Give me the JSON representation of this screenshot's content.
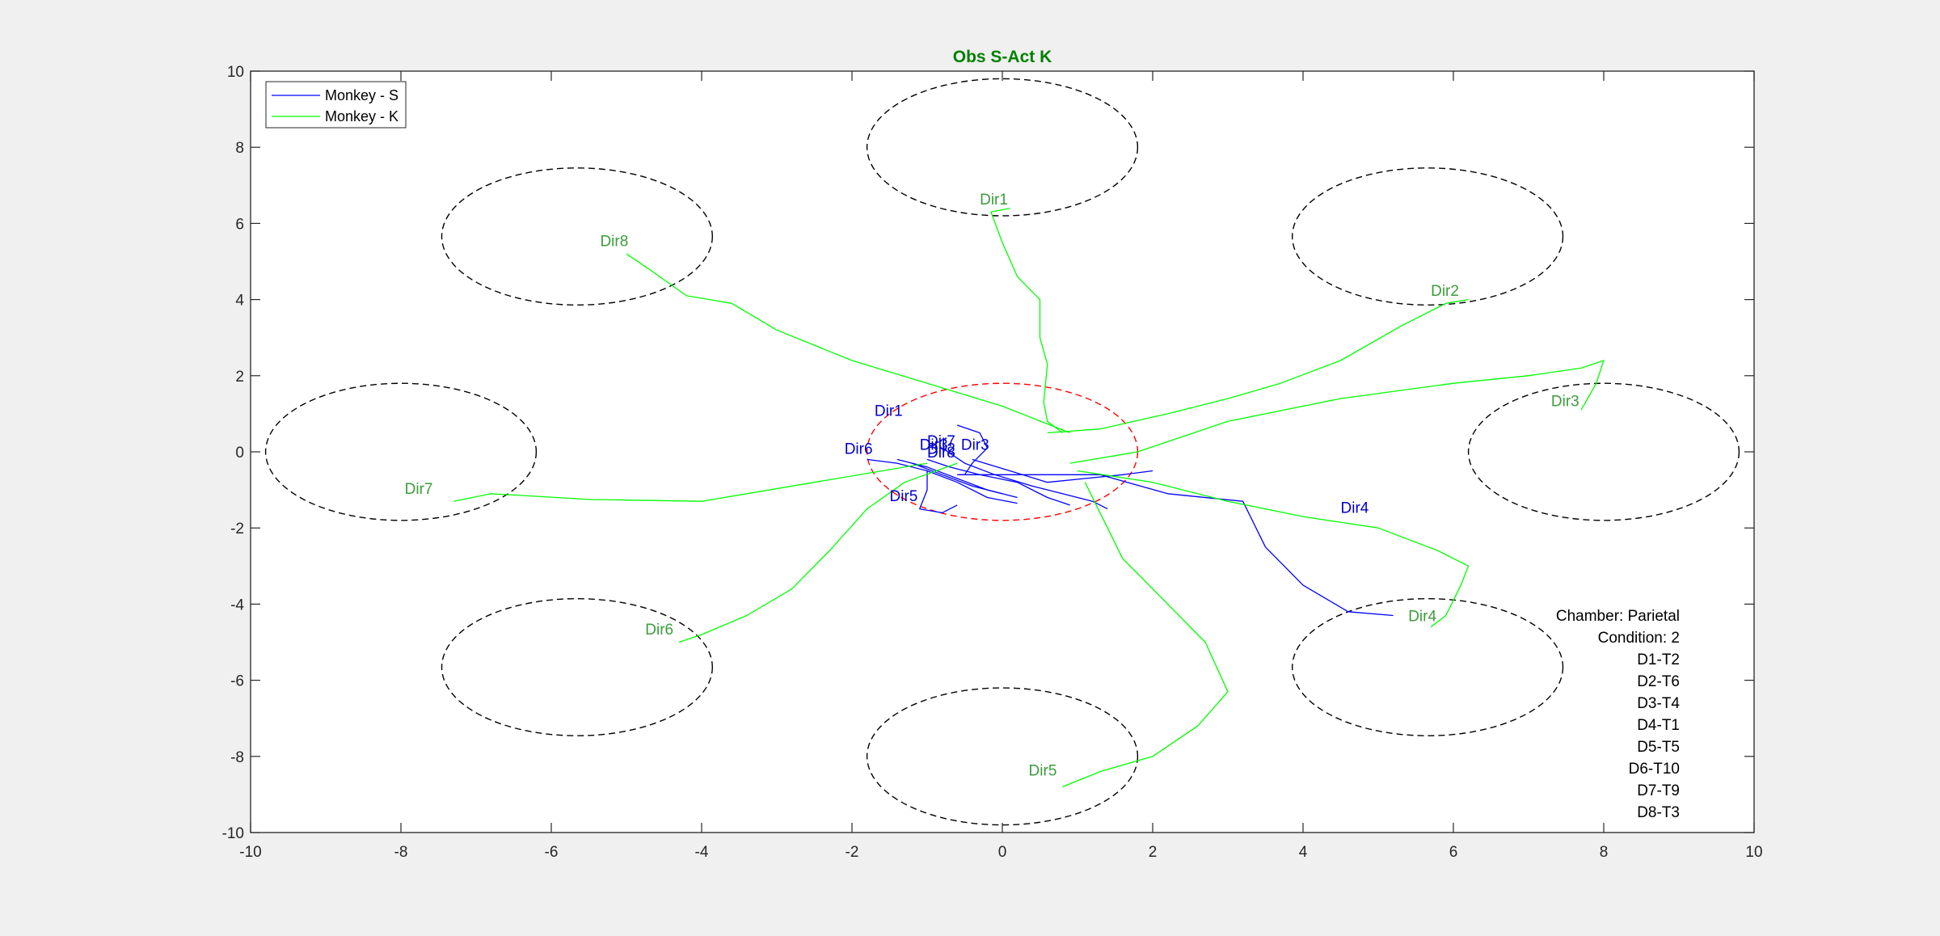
{
  "chart_data": {
    "type": "line",
    "title": "Obs S-Act K",
    "title_color": "#008000",
    "xlabel": "",
    "ylabel": "",
    "xlim": [
      -10,
      10
    ],
    "ylim": [
      -10,
      10
    ],
    "xticks": [
      -10,
      -8,
      -6,
      -4,
      -2,
      0,
      2,
      4,
      6,
      8,
      10
    ],
    "yticks": [
      -10,
      -8,
      -6,
      -4,
      -2,
      0,
      2,
      4,
      6,
      8,
      10
    ],
    "grid": false,
    "legend": {
      "placement": "top-left",
      "entries": [
        "Monkey - S",
        "Monkey - K"
      ]
    },
    "series": [
      {
        "name": "Monkey - S",
        "color": "#0000ff",
        "label_color": "#0000cc",
        "paths": [
          {
            "label": "Dir1",
            "label_at": [
              -1.7,
              0.95
            ],
            "points": [
              [
                -0.6,
                0.7
              ],
              [
                -0.3,
                0.5
              ],
              [
                -0.2,
                0.1
              ],
              [
                -0.4,
                -0.3
              ],
              [
                -0.5,
                -0.6
              ]
            ]
          },
          {
            "label": "Dir2",
            "label_at": [
              -1.0,
              -0.05
            ],
            "points": [
              [
                -1.0,
                -0.2
              ],
              [
                -0.7,
                -0.4
              ],
              [
                -0.3,
                -0.6
              ],
              [
                0.2,
                -0.8
              ],
              [
                0.6,
                -1.2
              ],
              [
                0.9,
                -1.4
              ]
            ]
          },
          {
            "label": "Dir3",
            "label_at": [
              -1.1,
              0.05
            ],
            "points": [
              [
                -0.8,
                0.1
              ],
              [
                -0.5,
                -0.3
              ],
              [
                -0.1,
                -0.6
              ],
              [
                0.4,
                -0.9
              ],
              [
                0.8,
                -1.1
              ],
              [
                1.2,
                -1.3
              ],
              [
                1.4,
                -1.5
              ]
            ]
          },
          {
            "label": "Dir4",
            "label_at": [
              4.5,
              -1.6
            ],
            "points": [
              [
                -0.6,
                -0.6
              ],
              [
                0.5,
                -0.6
              ],
              [
                1.3,
                -0.6
              ],
              [
                2.2,
                -1.1
              ],
              [
                3.2,
                -1.3
              ],
              [
                3.5,
                -2.5
              ],
              [
                4.0,
                -3.5
              ],
              [
                4.6,
                -4.2
              ],
              [
                5.2,
                -4.3
              ]
            ]
          },
          {
            "label": "Dir5",
            "label_at": [
              -1.5,
              -1.3
            ],
            "points": [
              [
                -1.0,
                -0.5
              ],
              [
                -1.0,
                -1.0
              ],
              [
                -1.1,
                -1.5
              ],
              [
                -0.8,
                -1.6
              ],
              [
                -0.6,
                -1.4
              ]
            ]
          },
          {
            "label": "Dir6",
            "label_at": [
              -2.1,
              -0.05
            ],
            "points": [
              [
                -1.8,
                -0.2
              ],
              [
                -1.4,
                -0.3
              ],
              [
                -1.0,
                -0.5
              ],
              [
                -0.6,
                -0.8
              ],
              [
                -0.2,
                -1.2
              ],
              [
                0.2,
                -1.35
              ]
            ]
          },
          {
            "label": "Dir7",
            "label_at": [
              -1.0,
              0.15
            ],
            "points": [
              [
                -1.4,
                -0.2
              ],
              [
                -1.0,
                -0.4
              ],
              [
                -0.6,
                -0.7
              ],
              [
                -0.2,
                -1.0
              ],
              [
                0.2,
                -1.2
              ]
            ]
          },
          {
            "label": "Dir8",
            "label_at": [
              -1.0,
              -0.15
            ],
            "points": [
              [
                -1.2,
                -0.3
              ],
              [
                -0.8,
                -0.6
              ],
              [
                -0.4,
                -0.9
              ],
              [
                0.0,
                -1.1
              ]
            ]
          },
          {
            "label": "Dir3",
            "label_at": [
              -0.55,
              0.05
            ],
            "points": [
              [
                -0.4,
                -0.2
              ],
              [
                0.1,
                -0.5
              ],
              [
                0.6,
                -0.8
              ],
              [
                1.1,
                -0.7
              ],
              [
                1.6,
                -0.6
              ],
              [
                2.0,
                -0.5
              ]
            ]
          }
        ]
      },
      {
        "name": "Monkey - K",
        "color": "#00ff00",
        "label_color": "#3c9c3c",
        "paths": [
          {
            "label": "Dir1",
            "label_at": [
              -0.3,
              6.5
            ],
            "points": [
              [
                0.8,
                0.5
              ],
              [
                0.6,
                0.8
              ],
              [
                0.55,
                1.3
              ],
              [
                0.6,
                2.3
              ],
              [
                0.5,
                3.0
              ],
              [
                0.5,
                4.0
              ],
              [
                0.2,
                4.6
              ],
              [
                0.0,
                5.5
              ],
              [
                -0.15,
                6.3
              ],
              [
                0.1,
                6.4
              ]
            ]
          },
          {
            "label": "Dir2",
            "label_at": [
              5.7,
              4.1
            ],
            "points": [
              [
                0.6,
                0.5
              ],
              [
                1.3,
                0.6
              ],
              [
                2.2,
                1.0
              ],
              [
                3.0,
                1.4
              ],
              [
                3.7,
                1.8
              ],
              [
                4.5,
                2.4
              ],
              [
                5.3,
                3.3
              ],
              [
                5.9,
                3.9
              ],
              [
                6.2,
                4.0
              ]
            ]
          },
          {
            "label": "Dir3",
            "label_at": [
              7.3,
              1.2
            ],
            "points": [
              [
                0.9,
                -0.3
              ],
              [
                1.8,
                0.0
              ],
              [
                3.0,
                0.8
              ],
              [
                4.5,
                1.4
              ],
              [
                6.0,
                1.8
              ],
              [
                7.0,
                2.0
              ],
              [
                7.7,
                2.2
              ],
              [
                8.0,
                2.4
              ],
              [
                7.9,
                1.8
              ],
              [
                7.7,
                1.1
              ]
            ]
          },
          {
            "label": "Dir4",
            "label_at": [
              5.4,
              -4.45
            ],
            "points": [
              [
                1.0,
                -0.5
              ],
              [
                2.0,
                -0.8
              ],
              [
                3.0,
                -1.3
              ],
              [
                4.0,
                -1.7
              ],
              [
                5.0,
                -2.0
              ],
              [
                5.8,
                -2.6
              ],
              [
                6.2,
                -3.0
              ],
              [
                6.1,
                -3.5
              ],
              [
                5.9,
                -4.3
              ],
              [
                5.7,
                -4.6
              ]
            ]
          },
          {
            "label": "Dir5",
            "label_at": [
              0.35,
              -8.5
            ],
            "points": [
              [
                1.1,
                -0.8
              ],
              [
                1.3,
                -1.6
              ],
              [
                1.6,
                -2.8
              ],
              [
                2.2,
                -4.0
              ],
              [
                2.7,
                -5.0
              ],
              [
                3.0,
                -6.3
              ],
              [
                2.6,
                -7.2
              ],
              [
                2.0,
                -8.0
              ],
              [
                1.3,
                -8.4
              ],
              [
                0.8,
                -8.8
              ]
            ]
          },
          {
            "label": "Dir6",
            "label_at": [
              -4.75,
              -4.8
            ],
            "points": [
              [
                -0.6,
                -0.3
              ],
              [
                -1.3,
                -0.8
              ],
              [
                -1.8,
                -1.5
              ],
              [
                -2.3,
                -2.6
              ],
              [
                -2.8,
                -3.6
              ],
              [
                -3.4,
                -4.3
              ],
              [
                -4.0,
                -4.8
              ],
              [
                -4.3,
                -5.0
              ]
            ]
          },
          {
            "label": "Dir7",
            "label_at": [
              -7.95,
              -1.1
            ],
            "points": [
              [
                -1.0,
                -0.3
              ],
              [
                -2.5,
                -0.8
              ],
              [
                -4.0,
                -1.3
              ],
              [
                -5.5,
                -1.25
              ],
              [
                -6.8,
                -1.1
              ],
              [
                -7.3,
                -1.3
              ]
            ]
          },
          {
            "label": "Dir8",
            "label_at": [
              -5.35,
              5.4
            ],
            "points": [
              [
                0.9,
                0.5
              ],
              [
                0.0,
                1.2
              ],
              [
                -1.0,
                1.8
              ],
              [
                -2.0,
                2.4
              ],
              [
                -3.0,
                3.2
              ],
              [
                -3.6,
                3.9
              ],
              [
                -4.2,
                4.1
              ],
              [
                -4.7,
                4.8
              ],
              [
                -5.0,
                5.2
              ]
            ]
          }
        ]
      }
    ],
    "target_circles": [
      {
        "cx": 0,
        "cy": 8,
        "r": 1.8,
        "color": "#000000"
      },
      {
        "cx": 5.657,
        "cy": 5.657,
        "r": 1.8,
        "color": "#000000"
      },
      {
        "cx": 8,
        "cy": 0,
        "r": 1.8,
        "color": "#000000"
      },
      {
        "cx": 5.657,
        "cy": -5.657,
        "r": 1.8,
        "color": "#000000"
      },
      {
        "cx": 0,
        "cy": -8,
        "r": 1.8,
        "color": "#000000"
      },
      {
        "cx": -5.657,
        "cy": -5.657,
        "r": 1.8,
        "color": "#000000"
      },
      {
        "cx": -8,
        "cy": 0,
        "r": 1.8,
        "color": "#000000"
      },
      {
        "cx": -5.657,
        "cy": 5.657,
        "r": 1.8,
        "color": "#000000"
      },
      {
        "cx": 0,
        "cy": 0,
        "r": 1.8,
        "color": "#ff0000"
      }
    ],
    "annotation": {
      "lines": [
        "Chamber: Parietal",
        "Condition: 2",
        "D1-T2",
        "D2-T6",
        "D3-T4",
        "D4-T1",
        "D5-T5",
        "D6-T10",
        "D7-T9",
        "D8-T3"
      ]
    }
  }
}
